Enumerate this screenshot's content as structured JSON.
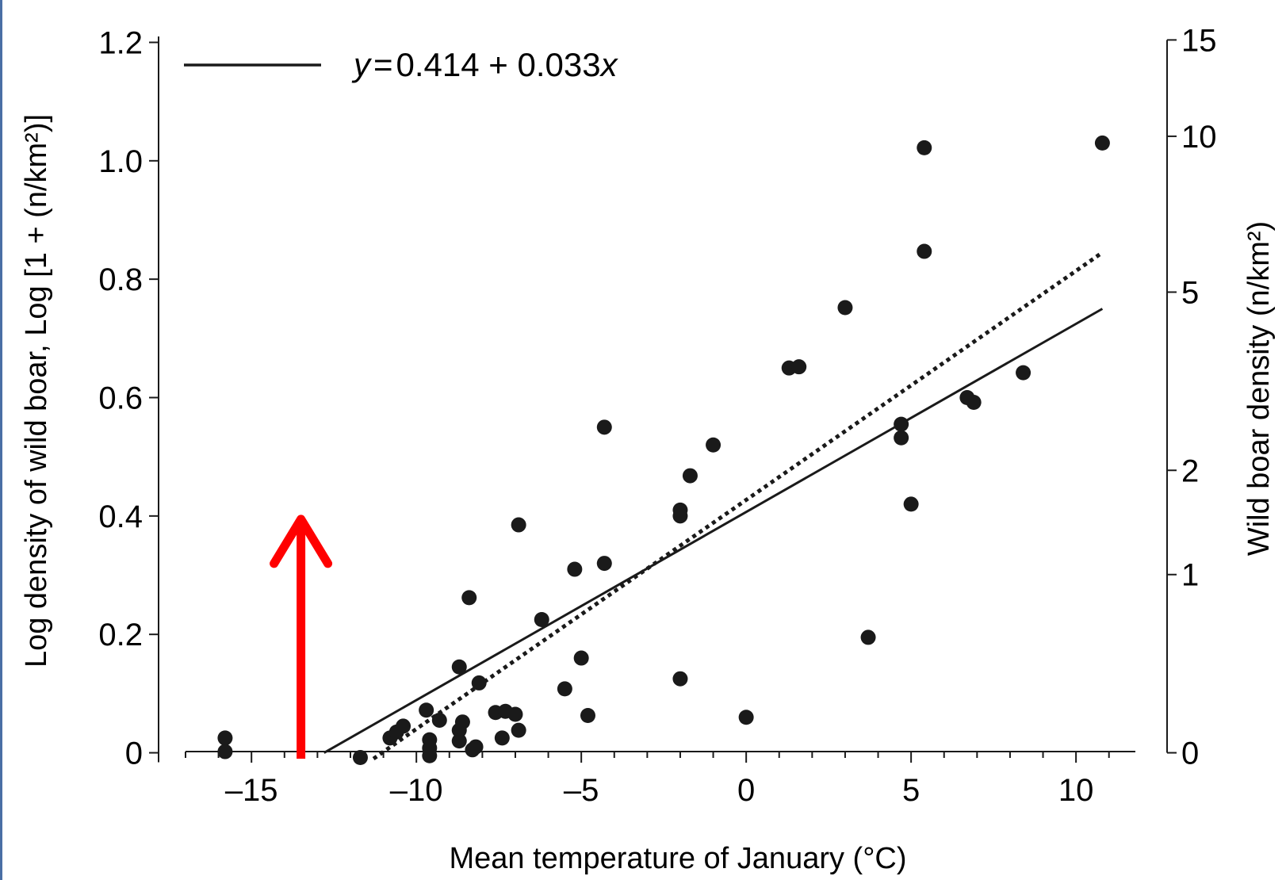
{
  "chart_data": {
    "type": "scatter",
    "title": "",
    "xlabel": "Mean temperature of January (°C)",
    "ylabel": "Log density of wild boar, Log [1 + (n/km²)]",
    "y2label": "Wild boar density (n/km²)",
    "xlim": [
      -17,
      11.8
    ],
    "ylim": [
      -0.01,
      1.21
    ],
    "x_ticks": [
      -15,
      -10,
      -5,
      0,
      5,
      10
    ],
    "x_tick_labels": [
      "–15",
      "–10",
      "–5",
      "0",
      "5",
      "10"
    ],
    "y_ticks": [
      0,
      0.2,
      0.4,
      0.6,
      0.8,
      1.0,
      1.2
    ],
    "y_tick_labels": [
      "0",
      "0.2",
      "0.4",
      "0.6",
      "0.8",
      "1.0",
      "1.2"
    ],
    "y2_ticks": [
      0,
      1,
      2,
      5,
      10,
      15
    ],
    "y2_tick_labels": [
      "0",
      "1",
      "2",
      "5",
      "10",
      "15"
    ],
    "legend": {
      "placement": "top-left",
      "entries": [
        {
          "style": "solid",
          "label_parts": [
            "y",
            "=",
            "0.414 + 0.033",
            "x"
          ]
        }
      ]
    },
    "series": [
      {
        "style": "points",
        "points": [
          [
            -15.8,
            0.025
          ],
          [
            -15.8,
            0.002
          ],
          [
            -11.7,
            -0.008
          ],
          [
            -10.8,
            0.025
          ],
          [
            -10.6,
            0.035
          ],
          [
            -10.4,
            0.045
          ],
          [
            -9.7,
            0.072
          ],
          [
            -9.6,
            0.022
          ],
          [
            -9.6,
            0.008
          ],
          [
            -9.6,
            -0.005
          ],
          [
            -9.3,
            0.055
          ],
          [
            -8.7,
            0.145
          ],
          [
            -8.7,
            0.038
          ],
          [
            -8.7,
            0.02
          ],
          [
            -8.6,
            0.052
          ],
          [
            -8.4,
            0.262
          ],
          [
            -8.3,
            0.005
          ],
          [
            -8.2,
            0.01
          ],
          [
            -8.1,
            0.118
          ],
          [
            -7.6,
            0.068
          ],
          [
            -7.4,
            0.025
          ],
          [
            -7.3,
            0.07
          ],
          [
            -7.0,
            0.065
          ],
          [
            -6.9,
            0.038
          ],
          [
            -6.9,
            0.385
          ],
          [
            -6.2,
            0.225
          ],
          [
            -5.5,
            0.108
          ],
          [
            -5.2,
            0.31
          ],
          [
            -5.0,
            0.16
          ],
          [
            -4.8,
            0.063
          ],
          [
            -4.3,
            0.55
          ],
          [
            -4.3,
            0.32
          ],
          [
            -2.0,
            0.41
          ],
          [
            -2.0,
            0.4
          ],
          [
            -2.0,
            0.125
          ],
          [
            -1.7,
            0.468
          ],
          [
            -1.0,
            0.52
          ],
          [
            0.0,
            0.06
          ],
          [
            1.3,
            0.65
          ],
          [
            1.6,
            0.652
          ],
          [
            3.0,
            0.752
          ],
          [
            3.7,
            0.195
          ],
          [
            4.7,
            0.555
          ],
          [
            4.7,
            0.532
          ],
          [
            5.0,
            0.42
          ],
          [
            5.4,
            1.022
          ],
          [
            5.4,
            0.847
          ],
          [
            6.7,
            0.6
          ],
          [
            6.9,
            0.592
          ],
          [
            8.4,
            0.642
          ],
          [
            10.8,
            1.03
          ]
        ]
      },
      {
        "style": "solid-line",
        "label": "y=0.414+0.033x",
        "points": [
          [
            -12.8,
            0.0
          ],
          [
            10.8,
            0.75
          ]
        ]
      },
      {
        "style": "dotted-line",
        "points": [
          [
            -11.3,
            -0.01
          ],
          [
            10.8,
            0.845
          ]
        ]
      }
    ],
    "annotations": [
      {
        "type": "arrow",
        "color": "#ff0000",
        "x": -13.5,
        "y_from": -0.01,
        "y_to": 0.4
      }
    ],
    "grid": false,
    "colors": {
      "points": "#1a1a1a",
      "lines": "#1a1a1a",
      "arrow": "#ff0000",
      "left_border": "#4a6fa5"
    }
  }
}
